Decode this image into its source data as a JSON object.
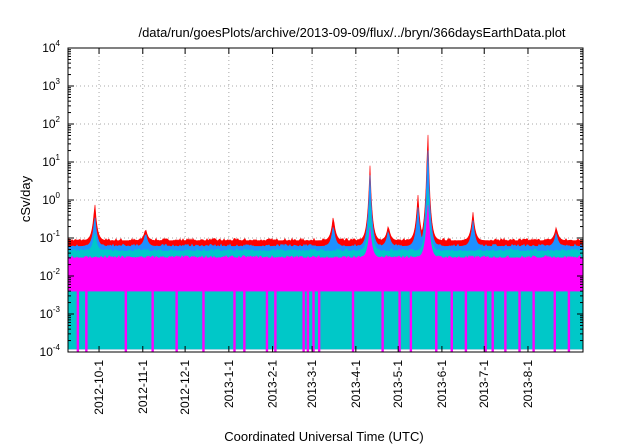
{
  "chart_data": {
    "type": "area",
    "title": "/data/run/goesPlots/archive/2013-09-09/flux/../bryn/366daysEarthData.plot",
    "xlabel": "Coordinated Universal Time (UTC)",
    "ylabel": "cSv/day",
    "y_scale": "log",
    "ylim": [
      0.0001,
      10000
    ],
    "xlim": [
      "2012-09-09",
      "2013-09-09"
    ],
    "grid": true,
    "y_ticks": [
      {
        "base": "10",
        "exp": "-4",
        "value": 0.0001
      },
      {
        "base": "10",
        "exp": "-3",
        "value": 0.001
      },
      {
        "base": "10",
        "exp": "-2",
        "value": 0.01
      },
      {
        "base": "10",
        "exp": "-1",
        "value": 0.1
      },
      {
        "base": "10",
        "exp": "0",
        "value": 1
      },
      {
        "base": "10",
        "exp": "1",
        "value": 10
      },
      {
        "base": "10",
        "exp": "2",
        "value": 100
      },
      {
        "base": "10",
        "exp": "3",
        "value": 1000
      },
      {
        "base": "10",
        "exp": "4",
        "value": 10000
      }
    ],
    "x_ticks": [
      "2012-10-1",
      "2012-11-1",
      "2012-12-1",
      "2013-1-1",
      "2013-2-1",
      "2013-3-1",
      "2013-4-1",
      "2013-5-1",
      "2013-6-1",
      "2013-7-1",
      "2013-8-1"
    ],
    "series": [
      {
        "color": "#ff0000",
        "baseline": 0.085,
        "peaks": [
          {
            "date": "2012-09-28",
            "value": 0.9
          },
          {
            "date": "2012-11-03",
            "value": 0.18
          },
          {
            "date": "2013-03-16",
            "value": 0.4
          },
          {
            "date": "2013-04-11",
            "value": 9.0
          },
          {
            "date": "2013-04-24",
            "value": 0.22
          },
          {
            "date": "2013-05-15",
            "value": 1.5
          },
          {
            "date": "2013-05-22",
            "value": 95
          },
          {
            "date": "2013-06-23",
            "value": 0.5
          },
          {
            "date": "2013-08-21",
            "value": 0.2
          }
        ]
      },
      {
        "color": "#1e90ff",
        "baseline": 0.06,
        "peaks": [
          {
            "date": "2012-09-28",
            "value": 0.4
          },
          {
            "date": "2012-11-03",
            "value": 0.14
          },
          {
            "date": "2013-03-16",
            "value": 0.22
          },
          {
            "date": "2013-04-11",
            "value": 5.0
          },
          {
            "date": "2013-04-24",
            "value": 0.16
          },
          {
            "date": "2013-05-15",
            "value": 0.7
          },
          {
            "date": "2013-05-22",
            "value": 35
          },
          {
            "date": "2013-06-23",
            "value": 0.3
          },
          {
            "date": "2013-08-21",
            "value": 0.14
          }
        ]
      },
      {
        "color": "#00c8c8",
        "baseline": 0.045,
        "peaks": [
          {
            "date": "2012-09-28",
            "value": 0.15
          },
          {
            "date": "2013-04-11",
            "value": 1.0
          },
          {
            "date": "2013-05-22",
            "value": 3.0
          }
        ]
      },
      {
        "color": "#ff00ff",
        "baseline": 0.03,
        "min": 0.004,
        "peaks": [
          {
            "date": "2013-04-11",
            "value": 0.2
          },
          {
            "date": "2013-05-22",
            "value": 1.0
          }
        ]
      }
    ],
    "data_gaps": [
      "2012-09-16",
      "2012-09-22",
      "2012-10-20",
      "2012-11-08",
      "2012-11-25",
      "2012-12-14",
      "2013-01-05",
      "2013-01-12",
      "2013-01-28",
      "2013-02-03",
      "2013-02-23",
      "2013-02-26",
      "2013-03-02",
      "2013-03-06",
      "2013-03-30",
      "2013-04-20",
      "2013-05-02",
      "2013-05-10",
      "2013-05-28",
      "2013-06-08",
      "2013-06-18",
      "2013-07-02",
      "2013-07-07",
      "2013-07-16",
      "2013-07-26",
      "2013-08-05",
      "2013-08-20",
      "2013-08-30"
    ]
  }
}
